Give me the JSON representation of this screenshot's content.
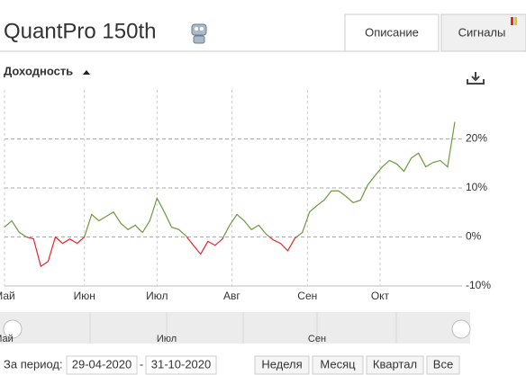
{
  "header": {
    "title": "QuantPro 150th"
  },
  "tabs": [
    "Описание",
    "Сигналы"
  ],
  "section": {
    "title": "Доходность"
  },
  "chart_data": {
    "type": "line",
    "series": [
      {
        "color": "#6b9a3c",
        "negative_color": "#e4252a",
        "values": [
          2,
          3.3,
          1,
          0,
          -0.4,
          -6,
          -5,
          0,
          -1.3,
          -0.4,
          -1.3,
          0,
          4.6,
          3.3,
          4.2,
          5.1,
          2.8,
          1.5,
          2.4,
          0.9,
          3.3,
          7.9,
          5.1,
          2,
          1.5,
          0.2,
          -1.7,
          -3.5,
          -0.9,
          -1.7,
          -0.4,
          2.4,
          4.6,
          3.3,
          1.5,
          2.4,
          0.6,
          -0.6,
          -1.3,
          -2.8,
          -0.2,
          0.9,
          5.1,
          6.4,
          7.5,
          9.4,
          9.4,
          8.3,
          7,
          7.5,
          10.6,
          12.5,
          14.3,
          15.6,
          14.9,
          13.4,
          16.1,
          17.1,
          14.3,
          15.2,
          15.6,
          14.3,
          23.5
        ]
      }
    ],
    "xlim": [
      0,
      62
    ],
    "xticks": [
      {
        "value": 0,
        "label": "Май"
      },
      {
        "value": 11,
        "label": "Июн"
      },
      {
        "value": 21,
        "label": "Июл"
      },
      {
        "value": 31.3,
        "label": "Авг"
      },
      {
        "value": 41.7,
        "label": "Сен"
      },
      {
        "value": 51.7,
        "label": "Окт"
      }
    ],
    "ylim": [
      -10,
      30
    ],
    "yticks": [
      {
        "value": -10,
        "label": "-10%"
      },
      {
        "value": 0,
        "label": "0%"
      },
      {
        "value": 10,
        "label": "10%"
      },
      {
        "value": 20,
        "label": "20%"
      }
    ],
    "grid": true
  },
  "navigator": {
    "labels": [
      "Май",
      "Июл",
      "Сен"
    ]
  },
  "period": {
    "label": "За период:",
    "from": "29-04-2020",
    "separator": "-",
    "to": "31-10-2020"
  },
  "buttons": [
    "Неделя",
    "Месяц",
    "Квартал",
    "Все"
  ]
}
